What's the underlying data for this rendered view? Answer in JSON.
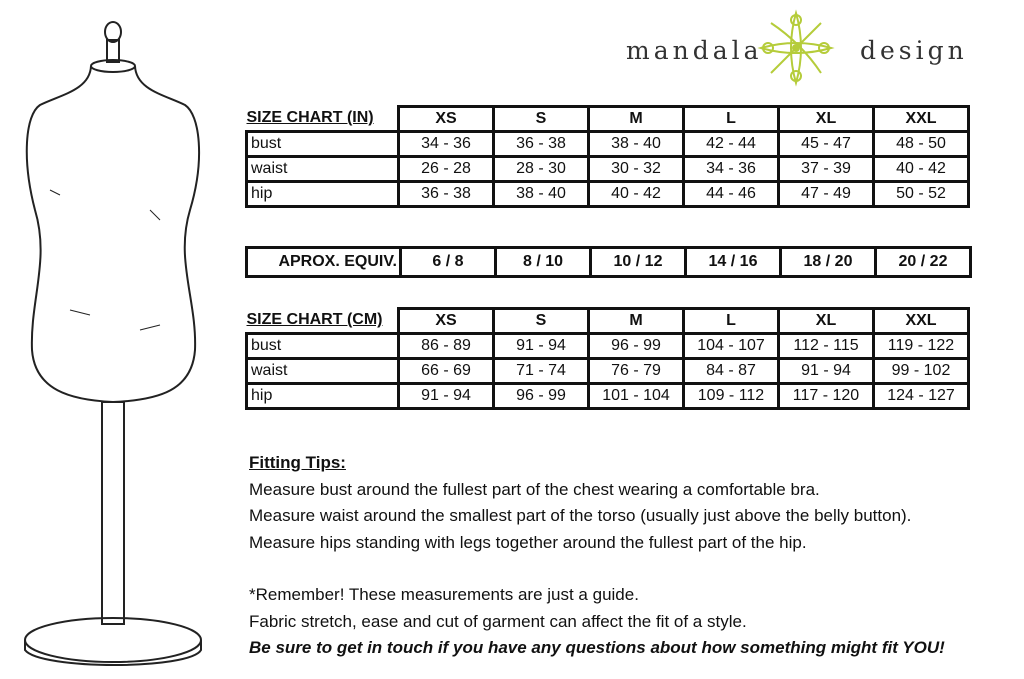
{
  "logo": {
    "left": "mandala",
    "right": "design",
    "color": "#b5cc3a"
  },
  "chart_in": {
    "title": "SIZE CHART (IN)",
    "sizes": [
      "XS",
      "S",
      "M",
      "L",
      "XL",
      "XXL"
    ],
    "rows": [
      {
        "label": "bust",
        "values": [
          "34 - 36",
          "36 - 38",
          "38 - 40",
          "42 - 44",
          "45 - 47",
          "48 - 50"
        ]
      },
      {
        "label": "waist",
        "values": [
          "26 - 28",
          "28 - 30",
          "30 - 32",
          "34 - 36",
          "37 - 39",
          "40 - 42"
        ]
      },
      {
        "label": "hip",
        "values": [
          "36 - 38",
          "38 - 40",
          "40 - 42",
          "44 - 46",
          "47 - 49",
          "50 - 52"
        ]
      }
    ]
  },
  "equiv": {
    "label": "APROX. EQUIV.",
    "values": [
      "6 / 8",
      "8 / 10",
      "10 / 12",
      "14 / 16",
      "18 / 20",
      "20 / 22"
    ]
  },
  "chart_cm": {
    "title": "SIZE CHART (CM)",
    "sizes": [
      "XS",
      "S",
      "M",
      "L",
      "XL",
      "XXL"
    ],
    "rows": [
      {
        "label": "bust",
        "values": [
          "86 - 89",
          "91 - 94",
          "96 - 99",
          "104 - 107",
          "112 - 115",
          "119 - 122"
        ]
      },
      {
        "label": "waist",
        "values": [
          "66 - 69",
          "71 - 74",
          "76 - 79",
          "84 - 87",
          "91 - 94",
          "99 - 102"
        ]
      },
      {
        "label": "hip",
        "values": [
          "91 - 94",
          "96 - 99",
          "101 - 104",
          "109 - 112",
          "117 - 120",
          "124 - 127"
        ]
      }
    ]
  },
  "tips": {
    "heading": "Fitting Tips:",
    "lines": [
      "Measure bust around the fullest part of the chest wearing a comfortable bra.",
      "Measure waist around the smallest part of the torso (usually just above the belly button).",
      "Measure hips standing with legs together around the fullest part of the hip."
    ],
    "remember": "*Remember! These measurements are just a guide.",
    "fabric": "Fabric stretch, ease and cut of garment can affect the fit of a style.",
    "contact": "Be sure to get in touch if you have any questions about how something might fit YOU!"
  }
}
